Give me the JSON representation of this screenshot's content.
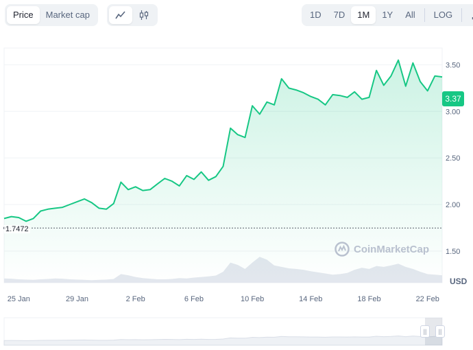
{
  "toolbar": {
    "mode_tabs": [
      {
        "label": "Price",
        "active": true
      },
      {
        "label": "Market cap",
        "active": false
      }
    ],
    "chart_type_icons": [
      {
        "icon": "line-chart-icon",
        "active": true
      },
      {
        "icon": "candlestick-icon",
        "active": false
      }
    ],
    "ranges": [
      {
        "label": "1D",
        "active": false
      },
      {
        "label": "7D",
        "active": false
      },
      {
        "label": "1M",
        "active": true
      },
      {
        "label": "1Y",
        "active": false
      },
      {
        "label": "All",
        "active": false
      }
    ],
    "log_label": "LOG",
    "download_icon": "download-icon"
  },
  "chart": {
    "current_price": "3.37",
    "open_price": "1.7472",
    "currency": "USD",
    "watermark": "CoinMarketCap"
  },
  "colors": {
    "line": "#16c784",
    "area_top": "rgba(22,199,132,0.22)",
    "grid": "#eff2f5",
    "volume": "#e3e7ee"
  },
  "chart_data": {
    "type": "line",
    "xlabel": "",
    "ylabel": "",
    "x_ticks": [
      "25 Jan",
      "29 Jan",
      "2 Feb",
      "6 Feb",
      "10 Feb",
      "14 Feb",
      "18 Feb",
      "22 Feb"
    ],
    "y_ticks": [
      "1.50",
      "2.00",
      "2.50",
      "3.00",
      "3.50"
    ],
    "ylim": [
      1.16,
      3.68
    ],
    "xlim_days": [
      0,
      30
    ],
    "baseline": 1.7472,
    "grid": true,
    "x": [
      0,
      0.5,
      1,
      1.5,
      2,
      2.5,
      3,
      3.5,
      4,
      4.5,
      5,
      5.5,
      6,
      6.5,
      7,
      7.5,
      8,
      8.5,
      9,
      9.5,
      10,
      10.5,
      11,
      11.5,
      12,
      12.5,
      13,
      13.5,
      14,
      14.5,
      15,
      15.5,
      16,
      16.5,
      17,
      17.5,
      18,
      18.5,
      19,
      19.5,
      20,
      20.5,
      21,
      21.5,
      22,
      22.5,
      23,
      23.5,
      24,
      24.5,
      25,
      25.5,
      26,
      26.5,
      27,
      27.5,
      28,
      28.5,
      29,
      29.5,
      30
    ],
    "values": [
      1.85,
      1.87,
      1.86,
      1.82,
      1.85,
      1.93,
      1.95,
      1.96,
      1.97,
      2.0,
      2.03,
      2.06,
      2.02,
      1.96,
      1.95,
      2.01,
      2.24,
      2.16,
      2.19,
      2.15,
      2.16,
      2.22,
      2.28,
      2.25,
      2.2,
      2.31,
      2.27,
      2.35,
      2.26,
      2.3,
      2.41,
      2.82,
      2.75,
      2.72,
      3.06,
      2.97,
      3.1,
      3.07,
      3.35,
      3.25,
      3.23,
      3.2,
      3.16,
      3.13,
      3.07,
      3.18,
      3.17,
      3.15,
      3.21,
      3.13,
      3.15,
      3.44,
      3.28,
      3.38,
      3.55,
      3.27,
      3.52,
      3.32,
      3.22,
      3.38,
      3.37
    ],
    "volume": [
      0.15,
      0.14,
      0.12,
      0.11,
      0.1,
      0.12,
      0.13,
      0.15,
      0.14,
      0.12,
      0.11,
      0.1,
      0.09,
      0.1,
      0.11,
      0.13,
      0.3,
      0.26,
      0.2,
      0.16,
      0.14,
      0.12,
      0.12,
      0.13,
      0.16,
      0.15,
      0.18,
      0.2,
      0.22,
      0.25,
      0.38,
      0.7,
      0.62,
      0.48,
      0.7,
      0.9,
      0.8,
      0.6,
      0.55,
      0.5,
      0.48,
      0.45,
      0.4,
      0.36,
      0.32,
      0.28,
      0.3,
      0.34,
      0.45,
      0.52,
      0.48,
      0.58,
      0.55,
      0.6,
      0.66,
      0.55,
      0.48,
      0.38,
      0.3,
      0.28,
      0.26
    ]
  }
}
